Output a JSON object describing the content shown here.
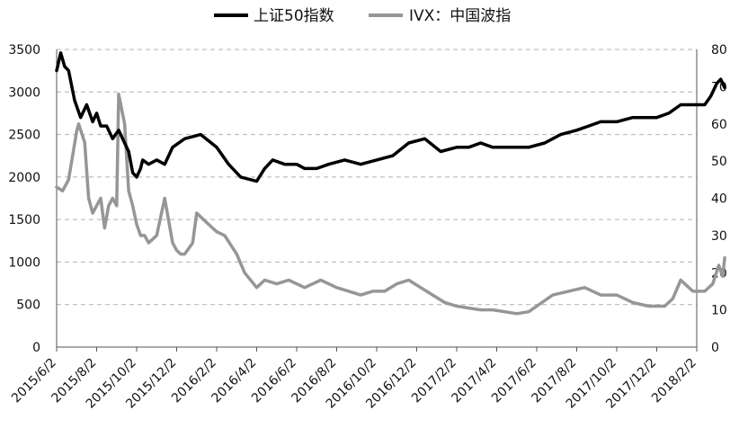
{
  "chart_data": {
    "type": "line",
    "grid": true,
    "legend_position": "top",
    "x_tick_labels": [
      "2015/6/2",
      "2015/8/2",
      "2015/10/2",
      "2015/12/2",
      "2016/2/2",
      "2016/4/2",
      "2016/6/2",
      "2016/8/2",
      "2016/10/2",
      "2016/12/2",
      "2017/2/2",
      "2017/4/2",
      "2017/6/2",
      "2017/8/2",
      "2017/10/2",
      "2017/12/2",
      "2018/2/2"
    ],
    "y_left": {
      "min": 0,
      "max": 3500,
      "ticks": [
        "0",
        "500",
        "1000",
        "1500",
        "2000",
        "2500",
        "3000",
        "3500"
      ]
    },
    "y_right": {
      "min": 0,
      "max": 80,
      "ticks": [
        "0",
        "10",
        "20",
        "30",
        "40",
        "50",
        "60",
        "70",
        "80"
      ]
    },
    "series": [
      {
        "name": "上证50指数",
        "axis": "left",
        "color": "#000000",
        "x": [
          0,
          0.1,
          0.2,
          0.3,
          0.45,
          0.6,
          0.75,
          0.9,
          1.0,
          1.1,
          1.25,
          1.4,
          1.55,
          1.7,
          1.8,
          1.9,
          2.0,
          2.1,
          2.15,
          2.3,
          2.5,
          2.7,
          2.9,
          3.2,
          3.6,
          4.0,
          4.3,
          4.6,
          5.0,
          5.2,
          5.4,
          5.7,
          6.0,
          6.2,
          6.5,
          6.8,
          7.2,
          7.6,
          8.0,
          8.4,
          8.8,
          9.2,
          9.6,
          10.0,
          10.3,
          10.6,
          10.9,
          11.2,
          11.5,
          11.8,
          12.2,
          12.6,
          13.0,
          13.3,
          13.6,
          14.0,
          14.4,
          14.8,
          15.0,
          15.3,
          15.6,
          15.9,
          16.2,
          16.35,
          16.5,
          16.6,
          16.7
        ],
        "y": [
          3250,
          3460,
          3300,
          3250,
          2900,
          2700,
          2850,
          2650,
          2750,
          2600,
          2600,
          2450,
          2550,
          2400,
          2300,
          2050,
          2000,
          2100,
          2200,
          2150,
          2200,
          2150,
          2350,
          2450,
          2500,
          2350,
          2150,
          2000,
          1950,
          2100,
          2200,
          2150,
          2150,
          2100,
          2100,
          2150,
          2200,
          2150,
          2200,
          2250,
          2400,
          2450,
          2300,
          2350,
          2350,
          2400,
          2350,
          2350,
          2350,
          2350,
          2400,
          2500,
          2550,
          2600,
          2650,
          2650,
          2700,
          2700,
          2700,
          2750,
          2850,
          2850,
          2850,
          2950,
          3100,
          3150,
          3050
        ]
      },
      {
        "name": "IVX：中国波指",
        "axis": "right",
        "color": "#969696",
        "x": [
          0,
          0.15,
          0.3,
          0.5,
          0.55,
          0.7,
          0.8,
          0.9,
          1.0,
          1.1,
          1.2,
          1.3,
          1.4,
          1.5,
          1.55,
          1.7,
          1.8,
          1.9,
          2.0,
          2.1,
          2.2,
          2.3,
          2.5,
          2.7,
          2.9,
          3.0,
          3.1,
          3.2,
          3.4,
          3.5,
          3.6,
          3.9,
          4.0,
          4.2,
          4.5,
          4.7,
          5.0,
          5.2,
          5.5,
          5.8,
          6.0,
          6.2,
          6.4,
          6.6,
          7.0,
          7.3,
          7.6,
          7.9,
          8.2,
          8.5,
          8.8,
          9.1,
          9.4,
          9.7,
          10.0,
          10.3,
          10.6,
          10.9,
          11.2,
          11.5,
          11.8,
          12.0,
          12.4,
          12.8,
          13.2,
          13.6,
          14.0,
          14.4,
          14.8,
          15.2,
          15.4,
          15.6,
          15.9,
          16.2,
          16.4,
          16.55,
          16.65,
          16.7
        ],
        "y": [
          43,
          42,
          45,
          58,
          60,
          55,
          40,
          36,
          38,
          40,
          32,
          38,
          40,
          38,
          68,
          60,
          42,
          38,
          33,
          30,
          30,
          28,
          30,
          40,
          28,
          26,
          25,
          25,
          28,
          36,
          35,
          32,
          31,
          30,
          25,
          20,
          16,
          18,
          17,
          18,
          17,
          16,
          17,
          18,
          16,
          15,
          14,
          15,
          15,
          17,
          18,
          16,
          14,
          12,
          11,
          10.5,
          10,
          10,
          9.5,
          9,
          9.5,
          11,
          14,
          15,
          16,
          14,
          14,
          12,
          11,
          11,
          13,
          18,
          15,
          15,
          17,
          22,
          19,
          24
        ]
      }
    ]
  }
}
